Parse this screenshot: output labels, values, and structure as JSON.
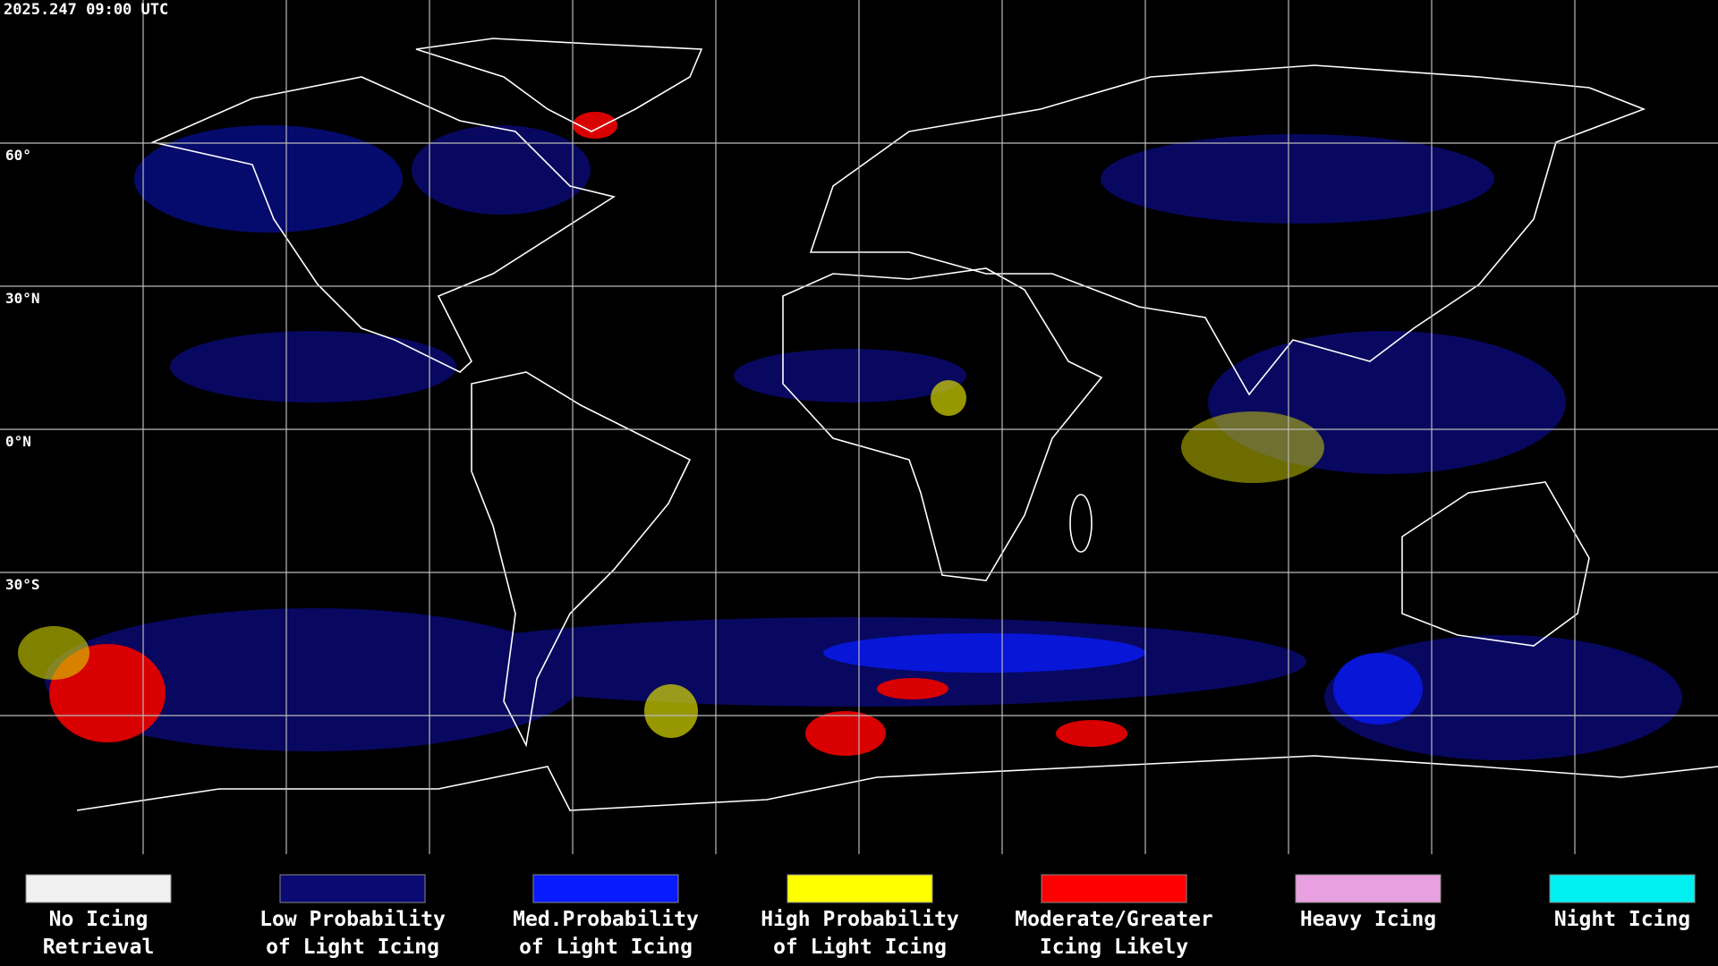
{
  "header": {
    "timestamp": "2025.247 09:00 UTC"
  },
  "map": {
    "latitude_labels": [
      "60°",
      "30°N",
      "0°N",
      "30°S"
    ]
  },
  "legend": [
    {
      "line1": "No Icing",
      "line2": "Retrieval",
      "color": "#f0f0f0"
    },
    {
      "line1": "Low Probability",
      "line2": "of Light Icing",
      "color": "#0a0a72"
    },
    {
      "line1": "Med.Probability",
      "line2": "of Light Icing",
      "color": "#0a1aff"
    },
    {
      "line1": "High Probability",
      "line2": "of Light Icing",
      "color": "#ffff00"
    },
    {
      "line1": "Moderate/Greater",
      "line2": "Icing Likely",
      "color": "#ff0000"
    },
    {
      "line1": "Heavy Icing",
      "line2": "",
      "color": "#e8a0e0"
    },
    {
      "line1": "Night Icing",
      "line2": "",
      "color": "#00f0f0"
    }
  ]
}
